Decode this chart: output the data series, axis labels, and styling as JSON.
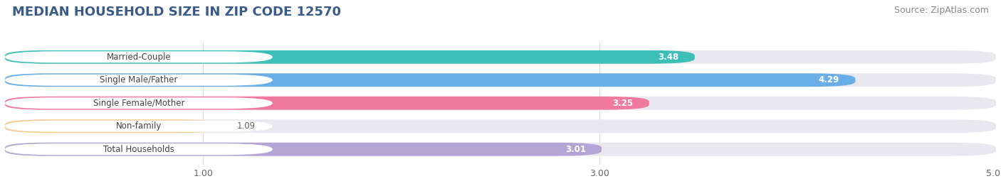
{
  "title": "MEDIAN HOUSEHOLD SIZE IN ZIP CODE 12570",
  "source": "Source: ZipAtlas.com",
  "categories": [
    "Married-Couple",
    "Single Male/Father",
    "Single Female/Mother",
    "Non-family",
    "Total Households"
  ],
  "values": [
    3.48,
    4.29,
    3.25,
    1.09,
    3.01
  ],
  "bar_colors": [
    "#3DBFB8",
    "#6AAEE8",
    "#EF7A9E",
    "#F8C98C",
    "#B3A5D4"
  ],
  "background_color": "#ffffff",
  "bar_bg_color": "#e8e8ee",
  "xlim": [
    0,
    5.0
  ],
  "xticks": [
    1.0,
    3.0,
    5.0
  ],
  "value_label_colors_inside": [
    "#ffffff",
    "#ffffff",
    "#666666",
    "#888888",
    "#666666"
  ],
  "title_fontsize": 13,
  "source_fontsize": 9,
  "label_fontsize": 8.5,
  "value_fontsize": 8.5
}
